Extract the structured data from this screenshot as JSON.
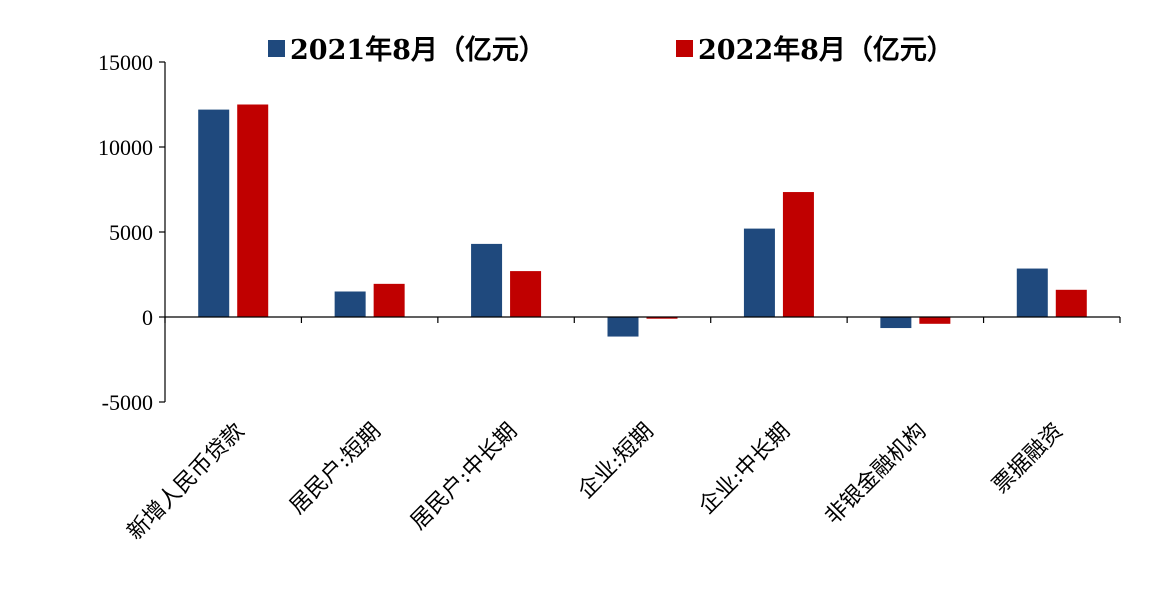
{
  "chart_data": {
    "type": "bar",
    "categories": [
      "新增人民币贷款",
      "居民户:短期",
      "居民户:中长期",
      "企业:短期",
      "企业:中长期",
      "非银金融机构",
      "票据融资"
    ],
    "series": [
      {
        "name": "2021年8月（亿元）",
        "color": "#1F497D",
        "values": [
          12200,
          1500,
          4300,
          -1150,
          5200,
          -650,
          2850
        ]
      },
      {
        "name": "2022年8月（亿元）",
        "color": "#C00000",
        "values": [
          12500,
          1950,
          2700,
          -100,
          7350,
          -400,
          1600
        ]
      }
    ],
    "ylim": [
      -5000,
      15000
    ],
    "yticks": [
      15000,
      10000,
      5000,
      0,
      -5000
    ],
    "ytick_labels": [
      "15000",
      "10000",
      "5000",
      "0",
      "-5000"
    ],
    "grid": false,
    "legend_position": "top"
  }
}
